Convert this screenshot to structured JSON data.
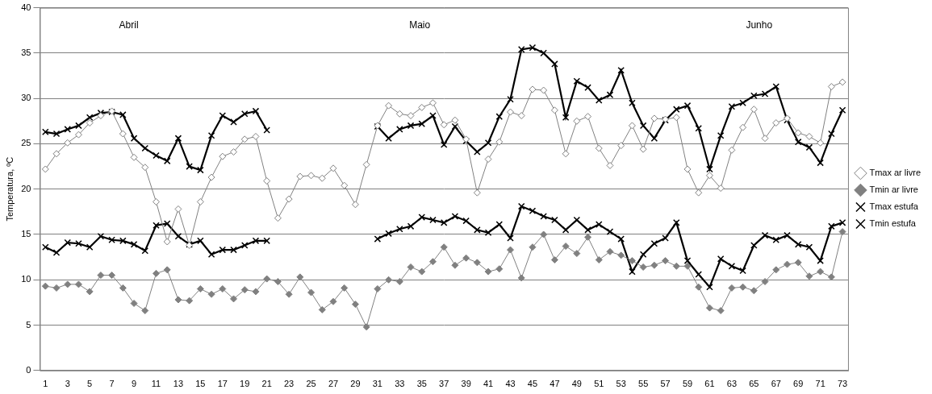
{
  "chart_data": {
    "type": "line",
    "y_label": "Temperatura, ºC",
    "annotations": [
      "Abril",
      "Maio",
      "Junho"
    ],
    "categories": [
      1,
      null,
      3,
      null,
      5,
      null,
      7,
      null,
      9,
      null,
      11,
      null,
      13,
      null,
      15,
      null,
      17,
      null,
      19,
      null,
      21,
      null,
      23,
      null,
      25,
      null,
      27,
      null,
      29,
      null,
      31,
      null,
      33,
      null,
      35,
      null,
      37,
      null,
      39,
      null,
      41,
      null,
      43,
      null,
      45,
      null,
      47,
      null,
      49,
      null,
      51,
      null,
      53,
      null,
      55,
      null,
      57,
      null,
      59,
      null,
      61,
      null,
      63,
      null,
      65,
      null,
      67,
      null,
      69,
      null,
      71,
      null,
      73
    ],
    "ylim": [
      0,
      40
    ],
    "yticks": [
      0,
      5,
      10,
      15,
      20,
      25,
      30,
      35,
      40
    ],
    "grid": true,
    "legend": "right",
    "series": [
      {
        "name": "Tmax ar livre",
        "color": "#808080",
        "marker": "open_diamond",
        "values": [
          22.2,
          23.9,
          25.1,
          26.0,
          27.3,
          28.1,
          28.6,
          26.1,
          23.5,
          22.4,
          18.6,
          14.2,
          17.8,
          13.8,
          18.6,
          21.3,
          23.6,
          24.1,
          25.5,
          25.8,
          20.9,
          16.8,
          18.9,
          21.4,
          21.5,
          21.2,
          22.3,
          20.4,
          18.3,
          22.7,
          27.0,
          29.2,
          28.3,
          28.1,
          29.0,
          29.5,
          27.1,
          27.6,
          25.5,
          19.6,
          23.3,
          25.2,
          28.5,
          28.1,
          31.0,
          30.9,
          28.7,
          23.9,
          27.5,
          28.0,
          24.5,
          22.6,
          24.8,
          27.0,
          24.4,
          27.8,
          27.7,
          27.9,
          22.2,
          19.6,
          21.5,
          20.1,
          24.3,
          26.8,
          28.8,
          25.6,
          27.3,
          27.8,
          26.2,
          25.8,
          25.1,
          31.3,
          31.8
        ]
      },
      {
        "name": "Tmin ar livre",
        "color": "#808080",
        "marker": "diamond",
        "values": [
          9.3,
          9.1,
          9.5,
          9.5,
          8.7,
          10.5,
          10.5,
          9.1,
          7.4,
          6.6,
          10.7,
          11.1,
          7.8,
          7.7,
          9.0,
          8.4,
          9.0,
          7.9,
          8.9,
          8.7,
          10.1,
          9.8,
          8.4,
          10.3,
          8.6,
          6.7,
          7.6,
          9.1,
          7.3,
          4.8,
          9.0,
          10.0,
          9.8,
          11.4,
          10.9,
          12.0,
          13.6,
          11.6,
          12.4,
          11.9,
          10.9,
          11.2,
          13.3,
          10.2,
          13.6,
          15.0,
          12.2,
          13.7,
          12.9,
          14.7,
          12.2,
          13.1,
          12.7,
          12.1,
          11.4,
          11.6,
          12.1,
          11.5,
          11.5,
          9.2,
          6.9,
          6.6,
          9.1,
          9.2,
          8.8,
          9.8,
          11.1,
          11.7,
          11.9,
          10.4,
          10.9,
          10.3,
          15.3
        ]
      },
      {
        "name": "Tmax estufa",
        "color": "#000000",
        "marker": "x",
        "values": [
          26.3,
          26.1,
          26.6,
          27.0,
          27.9,
          28.4,
          28.5,
          28.2,
          25.6,
          24.5,
          23.7,
          23.1,
          25.6,
          22.5,
          22.1,
          25.9,
          28.1,
          27.4,
          28.3,
          28.6,
          26.5,
          null,
          null,
          null,
          null,
          null,
          null,
          null,
          null,
          null,
          26.9,
          25.6,
          26.6,
          27.0,
          27.2,
          28.1,
          24.9,
          26.9,
          25.3,
          24.1,
          25.1,
          28.0,
          29.9,
          35.4,
          35.6,
          35.0,
          33.8,
          27.9,
          31.9,
          31.2,
          29.8,
          30.4,
          33.1,
          29.5,
          27.0,
          25.6,
          27.6,
          28.8,
          29.2,
          26.7,
          22.2,
          25.9,
          29.1,
          29.5,
          30.3,
          30.5,
          31.3,
          27.6,
          25.2,
          24.6,
          22.9,
          26.1,
          28.7
        ]
      },
      {
        "name": "Tmin estufa",
        "color": "#000000",
        "marker": "x",
        "values": [
          13.6,
          13.0,
          14.1,
          14.0,
          13.6,
          14.8,
          14.4,
          14.3,
          13.9,
          13.2,
          16.0,
          16.2,
          14.8,
          13.9,
          14.3,
          12.8,
          13.3,
          13.3,
          13.8,
          14.3,
          14.3,
          null,
          null,
          null,
          null,
          null,
          null,
          null,
          null,
          null,
          14.5,
          15.1,
          15.6,
          15.9,
          16.9,
          16.6,
          16.3,
          17.0,
          16.5,
          15.5,
          15.2,
          16.1,
          14.6,
          18.1,
          17.6,
          17.0,
          16.6,
          15.5,
          16.6,
          15.5,
          16.1,
          15.3,
          14.5,
          10.9,
          12.8,
          14.0,
          14.6,
          16.3,
          12.1,
          10.6,
          9.2,
          12.3,
          11.5,
          11.0,
          13.8,
          14.9,
          14.4,
          14.9,
          13.9,
          13.6,
          12.1,
          15.9,
          16.3
        ]
      }
    ]
  }
}
